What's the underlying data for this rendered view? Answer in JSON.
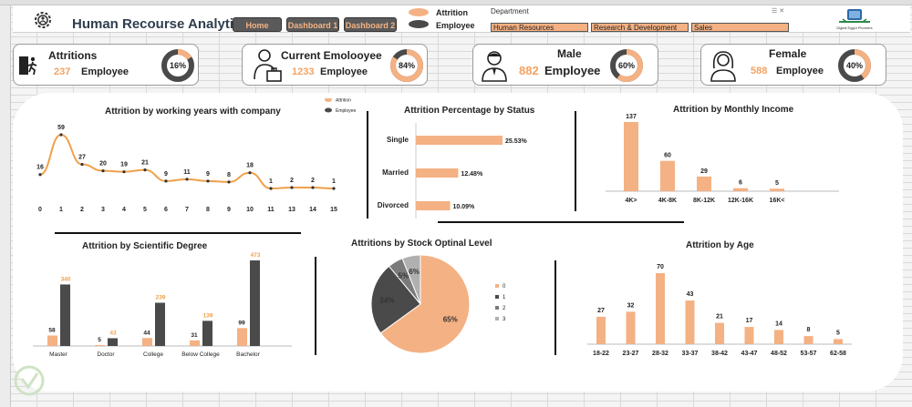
{
  "header": {
    "title": "Human Recourse Analytics",
    "nav": [
      "Home",
      "Dashboard 1",
      "Dashboard 2"
    ],
    "legend": [
      {
        "label": "Attrition",
        "color": "#f4b183"
      },
      {
        "label": "Employee",
        "color": "#4a4a4a"
      }
    ],
    "department_label": "Department",
    "departments": [
      "Human Resources",
      "Research & Development",
      "Sales"
    ],
    "brand_text": "Digital Egypt Pioneers"
  },
  "kpis": [
    {
      "title": "Attritions",
      "value": "237",
      "unit": "Employee",
      "percent": 16,
      "percent_label": "16%",
      "icon": "exit-door-icon"
    },
    {
      "title": "Current Emolooyee",
      "value": "1233",
      "unit": "Employee",
      "percent": 84,
      "percent_label": "84%",
      "icon": "worker-briefcase-icon"
    },
    {
      "title": "Male",
      "value": "882",
      "unit": "Employee",
      "percent": 60,
      "percent_label": "60%",
      "icon": "male-avatar-icon"
    },
    {
      "title": "Female",
      "value": "588",
      "unit": "Employee",
      "percent": 40,
      "percent_label": "40%",
      "icon": "female-avatar-icon"
    }
  ],
  "colors": {
    "attrition": "#f4b183",
    "employee": "#4a4a4a",
    "line": "#f0a04b"
  },
  "chart_data": [
    {
      "type": "line",
      "title": "Attrition by working years with company",
      "x": [
        "0",
        "1",
        "2",
        "3",
        "4",
        "5",
        "6",
        "7",
        "8",
        "9",
        "10",
        "11",
        "13",
        "14",
        "15"
      ],
      "values": [
        16,
        59,
        27,
        20,
        19,
        21,
        9,
        11,
        9,
        8,
        18,
        1,
        2,
        2,
        1
      ],
      "legend": [
        "Attrition",
        "Employee"
      ]
    },
    {
      "type": "bar",
      "orientation": "horizontal",
      "title": "Attrition Percentage by Status",
      "categories": [
        "Single",
        "Married",
        "Divorced"
      ],
      "values": [
        25.53,
        12.48,
        10.09
      ],
      "labels": [
        "25.53%",
        "12.48%",
        "10.09%"
      ]
    },
    {
      "type": "bar",
      "title": "Attrition by Monthly Income",
      "categories": [
        "4K>",
        "4K-8K",
        "8K-12K",
        "12K-16K",
        "16K<"
      ],
      "values": [
        137,
        60,
        29,
        6,
        5
      ]
    },
    {
      "type": "bar",
      "title": "Attrition by Scientific Degree",
      "categories": [
        "Master",
        "Doctor",
        "College",
        "Below College",
        "Bachelor"
      ],
      "series": [
        {
          "name": "Attrition",
          "values": [
            58,
            5,
            44,
            31,
            99
          ]
        },
        {
          "name": "Employee",
          "values": [
            340,
            43,
            239,
            139,
            473
          ]
        }
      ]
    },
    {
      "type": "pie",
      "title": "Attritions by Stock Optinal Level",
      "categories": [
        "0",
        "1",
        "2",
        "3"
      ],
      "values": [
        65,
        24,
        5,
        6
      ],
      "labels": [
        "65%",
        "24%",
        "5%",
        "6%"
      ],
      "colors": [
        "#f4b183",
        "#4a4a4a",
        "#7a7a7a",
        "#b0b0b0"
      ]
    },
    {
      "type": "bar",
      "title": "Attrition by Age",
      "categories": [
        "18-22",
        "23-27",
        "28-32",
        "33-37",
        "38-42",
        "43-47",
        "48-52",
        "53-57",
        "62-58"
      ],
      "values": [
        27,
        32,
        70,
        43,
        21,
        17,
        14,
        8,
        5
      ]
    }
  ]
}
